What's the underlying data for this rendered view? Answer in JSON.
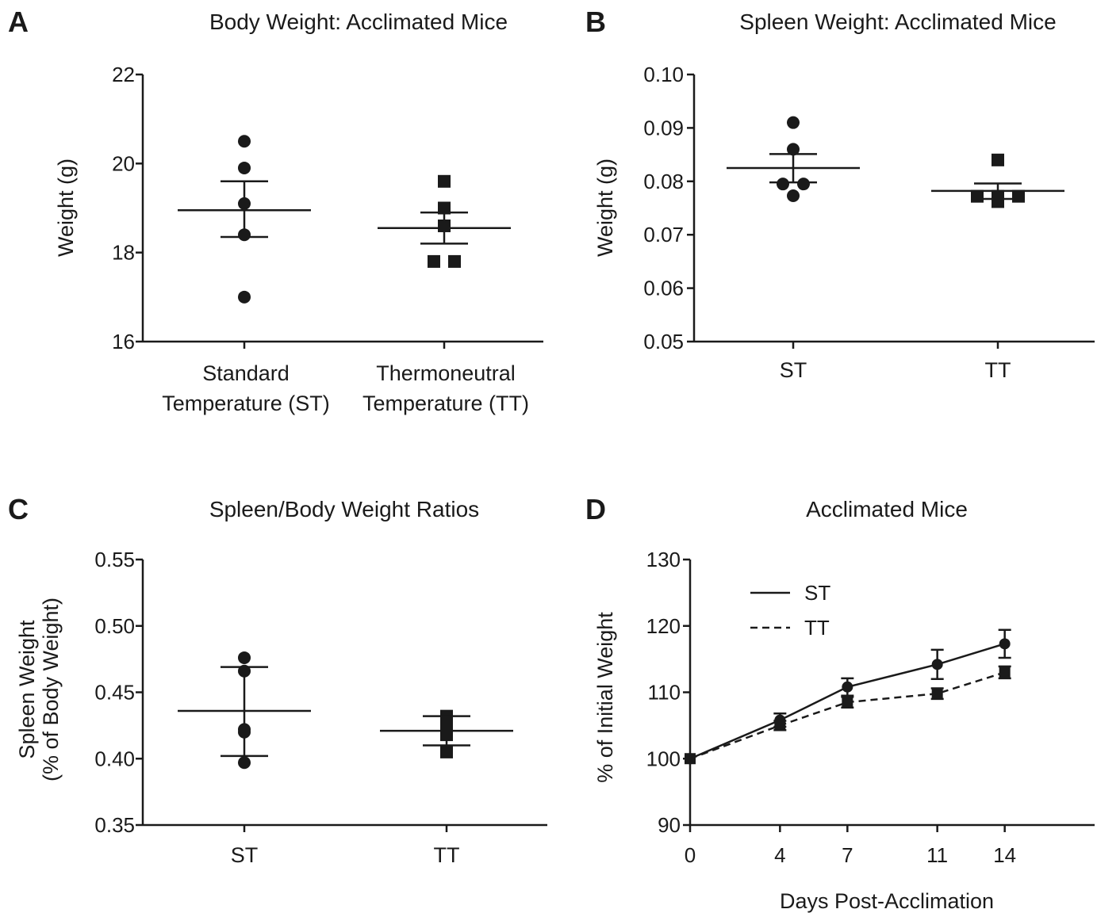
{
  "chart_data": [
    {
      "panel": "A",
      "type": "scatter",
      "title": "Body Weight: Acclimated Mice",
      "xlabel": "",
      "ylabel": "Weight (g)",
      "ylim": [
        16,
        22
      ],
      "yticks": [
        "16",
        "18",
        "20",
        "22"
      ],
      "categories": [
        [
          "Standard",
          "Temperature (ST)"
        ],
        [
          "Thermoneutral",
          "Temperature (TT)"
        ]
      ],
      "series": [
        {
          "category": 0,
          "marker": "circle",
          "points": [
            20.5,
            19.9,
            19.1,
            18.4,
            17.0
          ],
          "mean": 18.95,
          "sem_low": 18.35,
          "sem_high": 19.6
        },
        {
          "category": 1,
          "marker": "square",
          "points": [
            19.6,
            19.0,
            18.6,
            17.8,
            17.8
          ],
          "mean": 18.55,
          "sem_low": 18.2,
          "sem_high": 18.9
        }
      ]
    },
    {
      "panel": "B",
      "type": "scatter",
      "title": "Spleen Weight: Acclimated Mice",
      "xlabel": "",
      "ylabel": "Weight (g)",
      "ylim": [
        0.05,
        0.1
      ],
      "yticks": [
        "0.05",
        "0.06",
        "0.07",
        "0.08",
        "0.09",
        "0.10"
      ],
      "categories": [
        [
          "ST"
        ],
        [
          "TT"
        ]
      ],
      "series": [
        {
          "category": 0,
          "marker": "circle",
          "points": [
            0.091,
            0.086,
            0.0795,
            0.0795,
            0.0773
          ],
          "mean": 0.0825,
          "sem_low": 0.0798,
          "sem_high": 0.0851
        },
        {
          "category": 1,
          "marker": "square",
          "points": [
            0.084,
            0.0772,
            0.0772,
            0.0772,
            0.0762
          ],
          "mean": 0.0782,
          "sem_low": 0.0767,
          "sem_high": 0.0796
        }
      ]
    },
    {
      "panel": "C",
      "type": "scatter",
      "title": "Spleen/Body Weight Ratios",
      "xlabel": "",
      "ylabel": [
        "Spleen Weight",
        "(% of Body Weight)"
      ],
      "ylim": [
        0.35,
        0.55
      ],
      "yticks": [
        "0.35",
        "0.40",
        "0.45",
        "0.50",
        "0.55"
      ],
      "categories": [
        [
          "ST"
        ],
        [
          "TT"
        ]
      ],
      "series": [
        {
          "category": 0,
          "marker": "circle",
          "points": [
            0.476,
            0.466,
            0.422,
            0.42,
            0.397
          ],
          "mean": 0.436,
          "sem_low": 0.402,
          "sem_high": 0.469
        },
        {
          "category": 1,
          "marker": "square",
          "points": [
            0.432,
            0.428,
            0.42,
            0.418,
            0.405
          ],
          "mean": 0.421,
          "sem_low": 0.41,
          "sem_high": 0.432
        }
      ]
    },
    {
      "panel": "D",
      "type": "line",
      "title": "Acclimated Mice",
      "xlabel": "Days Post-Acclimation",
      "ylabel": "% of Initial Weight",
      "ylim": [
        90,
        130
      ],
      "xlim": [
        0,
        18
      ],
      "yticks": [
        "90",
        "100",
        "110",
        "120",
        "130"
      ],
      "x": [
        0,
        4,
        7,
        11,
        14
      ],
      "xticks": [
        "0",
        "4",
        "7",
        "11",
        "14"
      ],
      "legend_position": "top-left",
      "series": [
        {
          "name": "ST",
          "style": "solid",
          "marker": "circle",
          "values": [
            100,
            105.8,
            110.8,
            114.2,
            117.3
          ],
          "err": [
            0,
            1.0,
            1.3,
            2.2,
            2.1
          ]
        },
        {
          "name": "TT",
          "style": "dashed",
          "marker": "square",
          "values": [
            100,
            105.0,
            108.5,
            109.8,
            113.0
          ],
          "err": [
            0,
            0.7,
            0.8,
            0.8,
            0.9
          ]
        }
      ]
    }
  ]
}
